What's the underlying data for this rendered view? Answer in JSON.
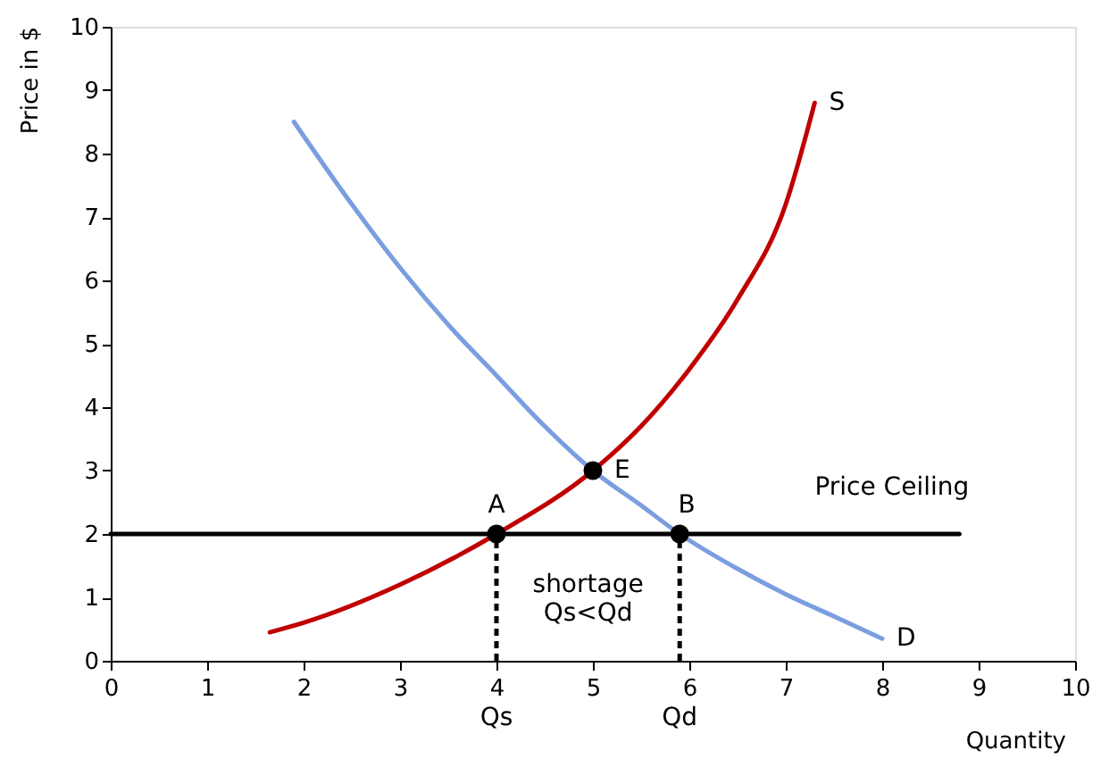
{
  "chart_data": {
    "type": "line",
    "xlabel": "Quantity",
    "ylabel": "Price in $",
    "xlim": [
      0,
      10
    ],
    "xticks": [
      0,
      1,
      2,
      3,
      4,
      5,
      6,
      7,
      8,
      9,
      10
    ],
    "ylim": [
      0,
      10
    ],
    "yticks": [
      0,
      1,
      2,
      3,
      4,
      5,
      6,
      7,
      8,
      9,
      10
    ],
    "grid": false,
    "marker": "none",
    "line_style": "solid",
    "series": [
      {
        "name": "S",
        "color": "#c00000",
        "x": [
          1.65,
          2,
          3,
          4,
          5,
          5.5,
          6,
          6.5,
          7,
          7.3
        ],
        "values": [
          0.45,
          0.6,
          1.2,
          2,
          3,
          3.7,
          4.6,
          5.7,
          7.2,
          8.8
        ]
      },
      {
        "name": "D",
        "color": "#7b9ee0",
        "x": [
          1.9,
          2.5,
          3,
          3.5,
          4,
          4.5,
          5,
          5.5,
          5.9,
          6.5,
          7,
          7.5,
          8
        ],
        "values": [
          8.5,
          7.2,
          6.2,
          5.3,
          4.5,
          3.7,
          3,
          2.45,
          2,
          1.45,
          1.05,
          0.7,
          0.35
        ]
      },
      {
        "color": "#000000",
        "x": [
          0,
          8.8
        ],
        "values": [
          2,
          2
        ]
      },
      {
        "color": "#000000",
        "x": [
          4,
          4
        ],
        "values": [
          0,
          2
        ],
        "line_style": "dashed"
      },
      {
        "color": "#000000",
        "x": [
          5.9,
          5.9
        ],
        "values": [
          0,
          2
        ],
        "line_style": "dashed"
      },
      {
        "type": "scatter",
        "marker": "circle",
        "color": "#000000",
        "x": [
          4,
          5,
          5.9
        ],
        "values": [
          2,
          3,
          2
        ]
      }
    ],
    "annotations": [
      {
        "text": "A",
        "x": 4,
        "y": 2
      },
      {
        "text": "E",
        "x": 5,
        "y": 3
      },
      {
        "text": "B",
        "x": 5.9,
        "y": 2
      },
      "shortage",
      "Qs<Qd",
      {
        "text": "Qs",
        "x": 4,
        "y": 0
      },
      {
        "text": "Qd",
        "x": 5.9,
        "y": 0
      },
      {
        "text": "Price Ceiling",
        "x": 8.1,
        "y": 2
      }
    ]
  }
}
